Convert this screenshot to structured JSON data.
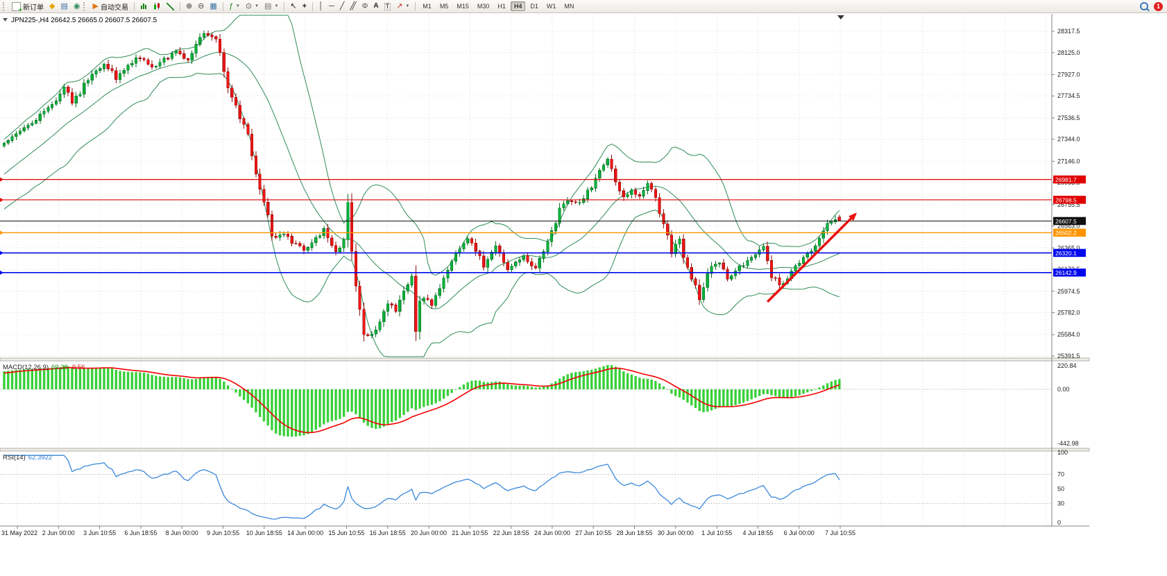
{
  "toolbar": {
    "new_order_label": "新订单",
    "autotrade_label": "自动交易",
    "timeframes": [
      "M1",
      "M5",
      "M15",
      "M30",
      "H1",
      "H4",
      "D1",
      "W1",
      "MN"
    ],
    "active_timeframe": "H4",
    "notification_count": "1"
  },
  "chart": {
    "header": "JPN225-,H4 26642.5 26665.0 26607.5 26607.5",
    "price_axis": [
      "28317.5",
      "28125.0",
      "27927.0",
      "27734.5",
      "27536.5",
      "27344.0",
      "27146.0",
      "26953.5",
      "26755.5",
      "26563.0",
      "26365.0",
      "26172.5",
      "25974.5",
      "25782.0",
      "25584.0",
      "25391.5"
    ],
    "time_axis": [
      "31 May 2022",
      "2 Jun 00:00",
      "3 Jun 10:55",
      "6 Jun 18:55",
      "8 Jun 00:00",
      "9 Jun 10:55",
      "10 Jun 18:55",
      "14 Jun 00:00",
      "15 Jun 10:55",
      "16 Jun 18:55",
      "20 Jun 00:00",
      "21 Jun 10:55",
      "22 Jun 18:55",
      "24 Jun 00:00",
      "27 Jun 10:55",
      "28 Jun 18:55",
      "30 Jun 00:00",
      "1 Jul 10:55",
      "4 Jul 18:55",
      "6 Jul 00:00",
      "7 Jul 10:55"
    ],
    "macd": {
      "name": "MACD(12,26,9)",
      "value_main": "69.38",
      "value_signal": "-9.56",
      "scale": [
        "220.84",
        "0.00",
        "-442.98"
      ]
    },
    "rsi": {
      "name": "RSI(14)",
      "value": "62.3922",
      "scale": [
        "100",
        "70",
        "50",
        "30",
        "0"
      ],
      "levels": [
        70,
        30
      ]
    }
  },
  "chart_data": {
    "type": "candlestick",
    "symbol": "JPN225-",
    "timeframe": "H4",
    "last_candle": {
      "open": 26642.5,
      "high": 26665.0,
      "low": 26607.5,
      "close": 26607.5
    },
    "price_range": {
      "min": 25391.5,
      "max": 28317.5
    },
    "candle_count": 210,
    "indicators": [
      "Bollinger Bands (20,2)",
      "MACD(12,26,9)",
      "RSI(14)"
    ],
    "colors": {
      "bull": "#06b33a",
      "bull_stroke": "#056a22",
      "bear": "#f21515",
      "bear_stroke": "#8e0b0b",
      "bollinger": "#2e8b57",
      "macd_hist": "#38d038",
      "macd_signal": "#f40000",
      "rsi_line": "#3a87d9",
      "grid": "#dcdcdc"
    },
    "price_path": [
      [
        0,
        27320
      ],
      [
        4,
        27420
      ],
      [
        9,
        27560
      ],
      [
        12,
        27650
      ],
      [
        15,
        27820
      ],
      [
        17,
        27660
      ],
      [
        21,
        27890
      ],
      [
        25,
        28030
      ],
      [
        28,
        27900
      ],
      [
        31,
        28010
      ],
      [
        34,
        28090
      ],
      [
        37,
        27990
      ],
      [
        40,
        28060
      ],
      [
        43,
        28140
      ],
      [
        46,
        28050
      ],
      [
        50,
        28310
      ],
      [
        53,
        28230
      ],
      [
        56,
        27820
      ],
      [
        59,
        27560
      ],
      [
        61,
        27380
      ],
      [
        63,
        27050
      ],
      [
        65,
        26800
      ],
      [
        67,
        26470
      ],
      [
        70,
        26480
      ],
      [
        73,
        26390
      ],
      [
        75,
        26340
      ],
      [
        78,
        26440
      ],
      [
        80,
        26520
      ],
      [
        83,
        26330
      ],
      [
        85,
        26420
      ],
      [
        86,
        26720
      ],
      [
        87,
        26300
      ],
      [
        89,
        25760
      ],
      [
        90,
        25540
      ],
      [
        93,
        25610
      ],
      [
        96,
        25890
      ],
      [
        98,
        25800
      ],
      [
        100,
        25950
      ],
      [
        102,
        26090
      ],
      [
        103,
        25580
      ],
      [
        104,
        25970
      ],
      [
        107,
        25850
      ],
      [
        110,
        26090
      ],
      [
        113,
        26330
      ],
      [
        116,
        26440
      ],
      [
        118,
        26340
      ],
      [
        120,
        26210
      ],
      [
        123,
        26370
      ],
      [
        126,
        26160
      ],
      [
        128,
        26230
      ],
      [
        130,
        26290
      ],
      [
        133,
        26170
      ],
      [
        135,
        26330
      ],
      [
        137,
        26520
      ],
      [
        139,
        26700
      ],
      [
        141,
        26800
      ],
      [
        143,
        26760
      ],
      [
        145,
        26820
      ],
      [
        147,
        26920
      ],
      [
        149,
        27060
      ],
      [
        151,
        27160
      ],
      [
        153,
        26990
      ],
      [
        155,
        26810
      ],
      [
        157,
        26890
      ],
      [
        159,
        26820
      ],
      [
        161,
        26930
      ],
      [
        163,
        26840
      ],
      [
        165,
        26570
      ],
      [
        167,
        26330
      ],
      [
        169,
        26430
      ],
      [
        171,
        26190
      ],
      [
        174,
        25930
      ],
      [
        176,
        26160
      ],
      [
        179,
        26230
      ],
      [
        181,
        26070
      ],
      [
        183,
        26160
      ],
      [
        186,
        26240
      ],
      [
        188,
        26290
      ],
      [
        190,
        26390
      ],
      [
        192,
        26130
      ],
      [
        194,
        26020
      ],
      [
        197,
        26140
      ],
      [
        199,
        26240
      ],
      [
        201,
        26310
      ],
      [
        204,
        26430
      ],
      [
        206,
        26570
      ],
      [
        208,
        26640
      ],
      [
        209,
        26607.5
      ]
    ],
    "horizontal_lines": [
      {
        "price": 26981.7,
        "label": "26981.7",
        "color": "#e00000",
        "width": 1.2,
        "marker": true
      },
      {
        "price": 26798.5,
        "label": "26798.5",
        "color": "#e00000",
        "width": 1.2,
        "marker": true
      },
      {
        "price": 26607.5,
        "label": "26607.5",
        "color": "#101010",
        "width": 1,
        "marker": false
      },
      {
        "price": 26502.2,
        "label": "26502.2",
        "color": "#ff9400",
        "width": 1.4,
        "marker": true
      },
      {
        "price": 26320.1,
        "label": "26320.1",
        "color": "#0008ee",
        "width": 1.6,
        "marker": true
      },
      {
        "price": 26142.9,
        "label": "26142.9",
        "color": "#0008ee",
        "width": 1.6,
        "marker": true
      }
    ],
    "trend_arrow": {
      "from_index": 191,
      "from_price": 25880,
      "to_index": 213,
      "to_price": 26670,
      "color": "#e81212"
    }
  }
}
